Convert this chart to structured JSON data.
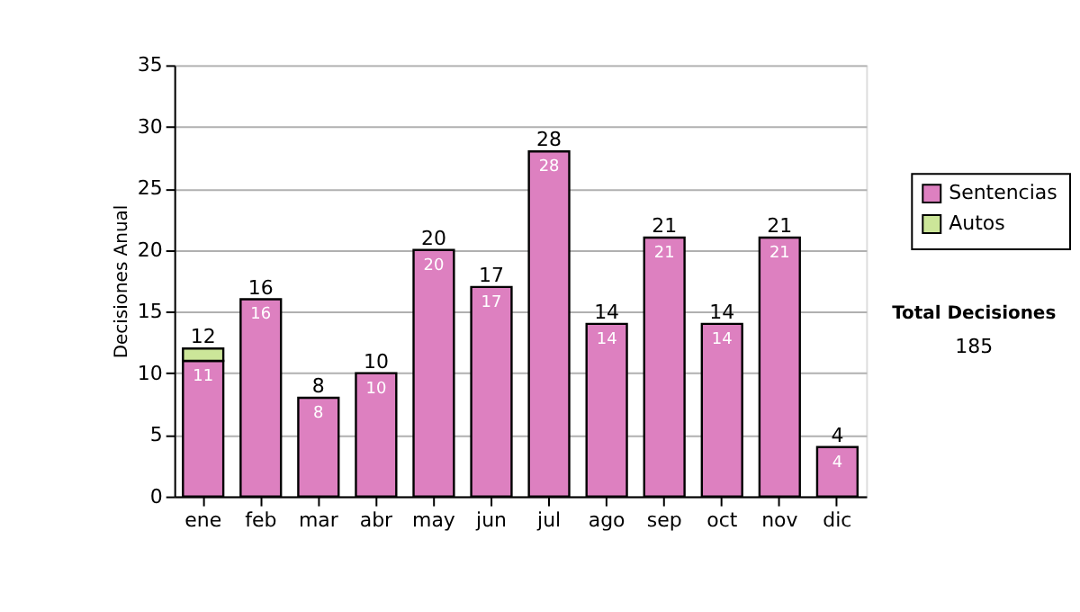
{
  "chart_data": {
    "type": "bar",
    "stacked": true,
    "ylabel": "Decisiones Anual",
    "categories": [
      "ene",
      "feb",
      "mar",
      "abr",
      "may",
      "jun",
      "jul",
      "ago",
      "sep",
      "oct",
      "nov",
      "dic"
    ],
    "series": [
      {
        "name": "Sentencias",
        "color": "#dd80c0",
        "values": [
          11,
          16,
          8,
          10,
          20,
          17,
          28,
          14,
          21,
          14,
          21,
          4
        ],
        "value_labels": [
          "11",
          "16",
          "8",
          "10",
          "20",
          "17",
          "28",
          "14",
          "21",
          "14",
          "21",
          "4"
        ]
      },
      {
        "name": "Autos",
        "color": "#cce699",
        "values": [
          1,
          null,
          null,
          null,
          null,
          null,
          null,
          null,
          null,
          null,
          null,
          null
        ]
      }
    ],
    "totals": [
      "12",
      "16",
      "8",
      "10",
      "20",
      "17",
      "28",
      "14",
      "21",
      "14",
      "21",
      "4"
    ],
    "ylim": [
      0,
      35
    ],
    "yticks": [
      0,
      5,
      10,
      15,
      20,
      25,
      30,
      35
    ],
    "grid": "y",
    "legend": "right",
    "annotations": [
      "Total Decisiones",
      "185"
    ]
  }
}
